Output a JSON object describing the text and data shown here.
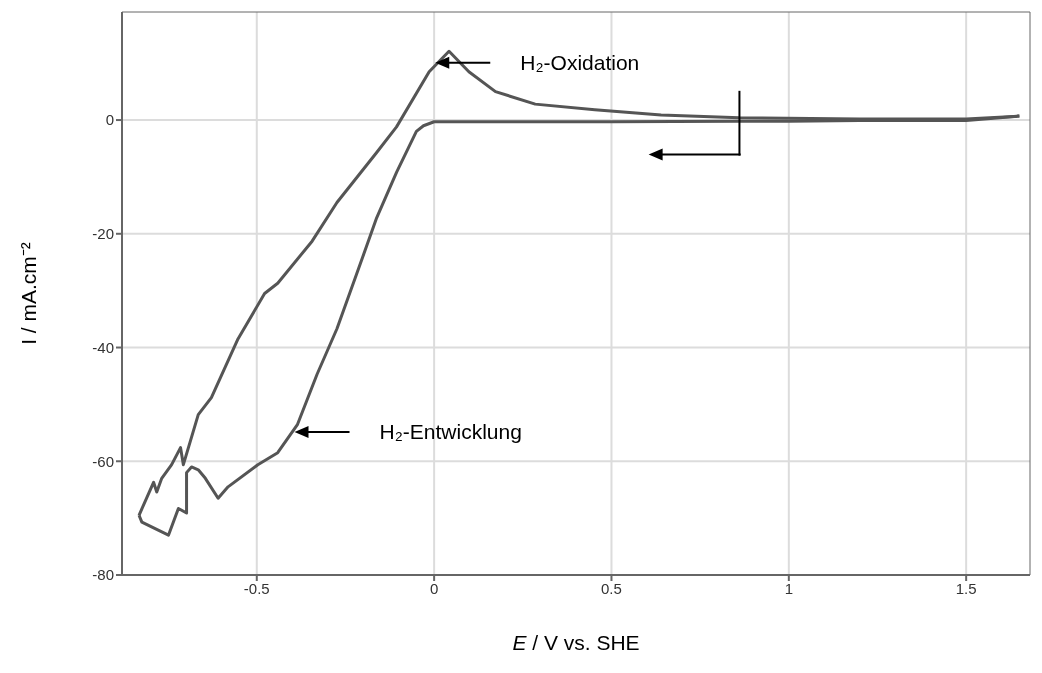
{
  "chart_data": {
    "type": "line",
    "xlabel": "E / V vs. SHE",
    "ylabel": "I / mA.cm⁻²",
    "xlim": [
      -0.88,
      1.68
    ],
    "ylim": [
      -80,
      19
    ],
    "xticks": [
      -0.5,
      0,
      0.5,
      1,
      1.5
    ],
    "yticks": [
      -80,
      -60,
      -40,
      -20,
      0
    ],
    "grid": true,
    "marker": "none",
    "line_style": "solid",
    "annotations": [
      "H₂-Oxidation",
      "H₂-Entwicklung"
    ],
    "series": [
      {
        "color": "#555555",
        "x": [
          -0.832,
          -0.824,
          -0.749,
          -0.721,
          -0.698,
          -0.698,
          -0.684,
          -0.665,
          -0.645,
          -0.609,
          -0.581,
          -0.497,
          -0.441,
          -0.385,
          -0.33,
          -0.274,
          -0.218,
          -0.162,
          -0.106,
          -0.05,
          -0.03,
          0.0,
          0.2,
          0.5,
          0.86,
          1.0,
          1.2,
          1.5,
          1.65
        ],
        "values": [
          -69.5,
          -70.7,
          -73,
          -68.3,
          -69.1,
          -62,
          -61,
          -61.5,
          -63,
          -66.5,
          -64.5,
          -60.6,
          -58.5,
          -53.5,
          -44.7,
          -36.7,
          -27,
          -17.2,
          -9.2,
          -2,
          -1,
          -0.3,
          -0.3,
          -0.3,
          -0.2,
          -0.2,
          -0.1,
          -0.1,
          0.7
        ]
      },
      {
        "color": "#555555",
        "x": [
          -0.832,
          -0.791,
          -0.782,
          -0.768,
          -0.74,
          -0.715,
          -0.707,
          -0.665,
          -0.628,
          -0.553,
          -0.478,
          -0.441,
          -0.344,
          -0.274,
          -0.162,
          -0.106,
          -0.014,
          0.042,
          0.098,
          0.173,
          0.285,
          0.453,
          0.64,
          0.86,
          1.2,
          1.5,
          1.65
        ],
        "values": [
          -69.5,
          -63.7,
          -65.4,
          -63,
          -60.6,
          -57.6,
          -60.6,
          -51.8,
          -48.8,
          -38.5,
          -30.5,
          -28.7,
          -21.3,
          -14.5,
          -5.7,
          -1.2,
          8.5,
          12.1,
          8.5,
          5,
          2.8,
          1.8,
          0.9,
          0.4,
          0.2,
          0.2,
          0.7
        ]
      }
    ]
  }
}
